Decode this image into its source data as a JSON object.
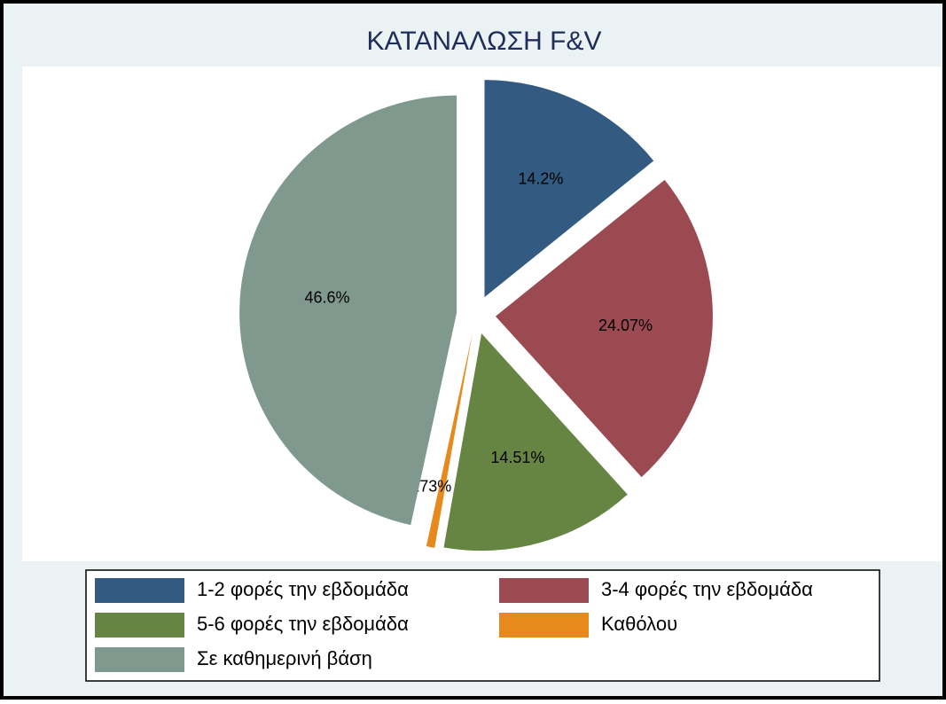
{
  "chart_data": {
    "type": "pie",
    "title": "ΚΑΤΑΝΑΛΩΣΗ F&V",
    "categories": [
      "1-2 φορές την εβδομάδα",
      "3-4 φορές την εβδομάδα",
      "5-6 φορές την εβδομάδα",
      "Καθόλου",
      "Σε καθημερινή βάση"
    ],
    "values": [
      14.2,
      24.07,
      14.51,
      0.6173,
      46.6
    ],
    "value_labels": [
      "14.2%",
      "24.07%",
      "14.51%",
      ".6173%",
      "46.6%"
    ],
    "colors": [
      "#335a80",
      "#9b4a51",
      "#668442",
      "#e8891c",
      "#7f998f"
    ],
    "exploded": true,
    "legend": "bottom"
  }
}
